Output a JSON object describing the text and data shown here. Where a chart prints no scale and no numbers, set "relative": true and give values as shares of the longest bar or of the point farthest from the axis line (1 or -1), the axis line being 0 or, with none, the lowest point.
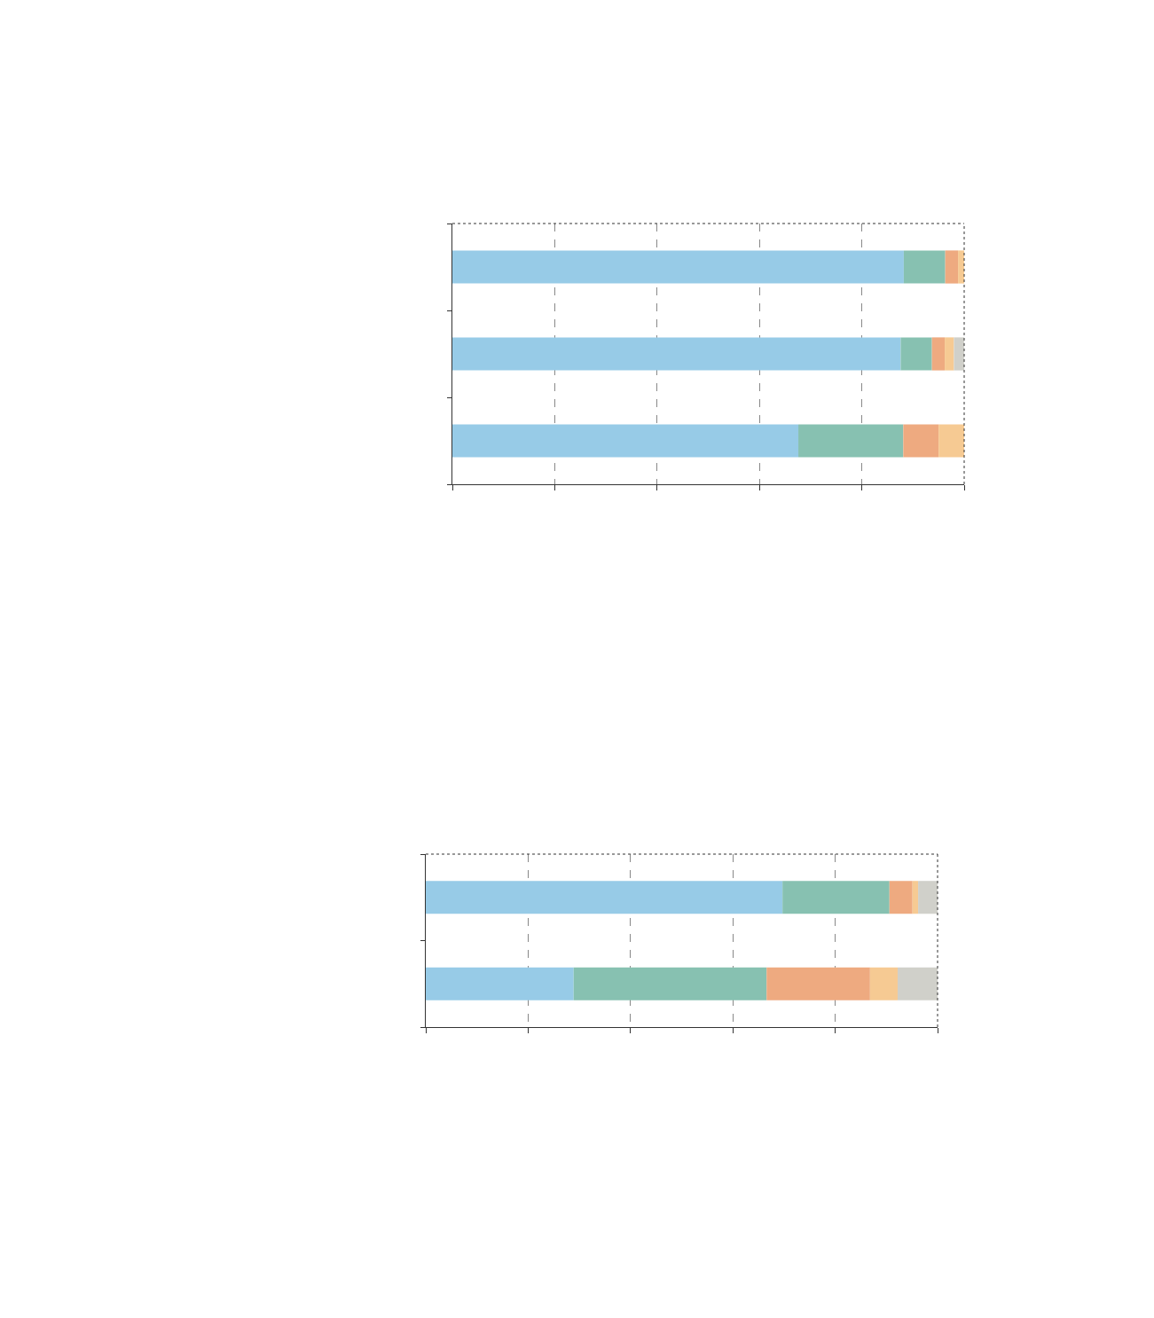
{
  "chart_data": [
    {
      "type": "bar",
      "orientation": "horizontal",
      "stacked": true,
      "relative": true,
      "grid": "x",
      "categories": [
        null,
        null,
        null
      ],
      "series": [
        {
          "color": "#97cbe7",
          "values": [
            0.882,
            0.876,
            0.676
          ]
        },
        {
          "color": "#87c1b1",
          "values": [
            0.081,
            0.061,
            0.205
          ]
        },
        {
          "color": "#eeaa80",
          "values": [
            0.025,
            0.025,
            0.069
          ]
        },
        {
          "color": "#f6ca93",
          "values": [
            0.012,
            0.018,
            0.05
          ]
        },
        {
          "color": "#d0d0ca",
          "values": [
            0,
            0.02,
            0
          ]
        }
      ]
    },
    {
      "type": "bar",
      "orientation": "horizontal",
      "stacked": true,
      "relative": true,
      "grid": "x",
      "categories": [
        null,
        null
      ],
      "series": [
        {
          "color": "#97cbe7",
          "values": [
            0.697,
            0.289
          ]
        },
        {
          "color": "#87c1b1",
          "values": [
            0.209,
            0.377
          ]
        },
        {
          "color": "#eeaa80",
          "values": [
            0.045,
            0.202
          ]
        },
        {
          "color": "#f6ca93",
          "values": [
            0.011,
            0.054
          ]
        },
        {
          "color": "#d0d0ca",
          "values": [
            0.038,
            0.078
          ]
        }
      ]
    }
  ]
}
